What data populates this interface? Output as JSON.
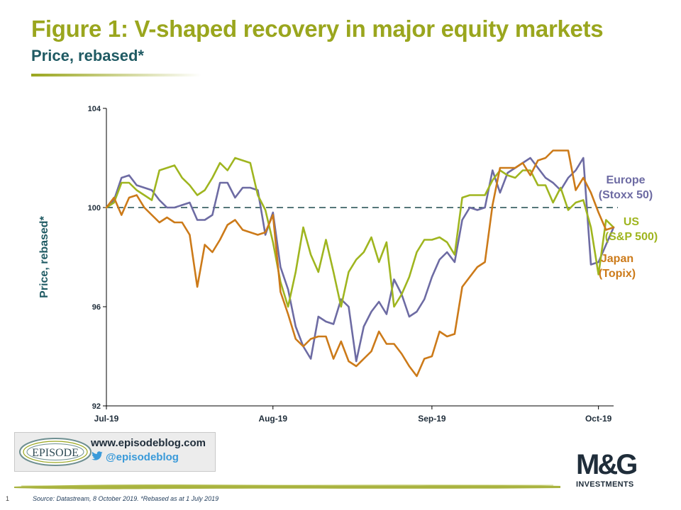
{
  "header": {
    "title": "Figure 1: V-shaped recovery in major equity markets",
    "subtitle": "Price, rebased*"
  },
  "chart_data": {
    "type": "line",
    "ylabel": "Price, rebased*",
    "ylim": [
      92,
      104
    ],
    "yticks": [
      92,
      96,
      100,
      104
    ],
    "x_ticks": [
      {
        "label": "Jul-19",
        "index": 0
      },
      {
        "label": "Aug-19",
        "index": 22
      },
      {
        "label": "Sep-19",
        "index": 43
      },
      {
        "label": "Oct-19",
        "index": 65
      }
    ],
    "reference_line": 100,
    "series": [
      {
        "name": "Europe (Stoxx 50)",
        "label_lines": [
          "Europe",
          "(Stoxx 50)"
        ],
        "color": "#6d6ba3",
        "values": [
          100,
          100.3,
          101.2,
          101.3,
          100.9,
          100.8,
          100.7,
          100.3,
          100.0,
          100.0,
          100.1,
          100.2,
          99.5,
          99.5,
          99.7,
          101.0,
          101.0,
          100.4,
          100.8,
          100.8,
          100.7,
          98.9,
          99.8,
          97.6,
          96.7,
          95.2,
          94.4,
          93.9,
          95.6,
          95.4,
          95.3,
          96.3,
          96.0,
          93.8,
          95.2,
          95.8,
          96.2,
          95.7,
          97.1,
          96.5,
          95.6,
          95.8,
          96.3,
          97.2,
          97.9,
          98.2,
          97.8,
          99.5,
          100.0,
          99.9,
          100.0,
          101.5,
          100.6,
          101.4,
          101.6,
          101.8,
          102.0,
          101.6,
          101.2,
          101.0,
          100.7,
          101.2,
          101.5,
          102.0,
          97.7,
          97.8,
          98.5,
          99.2
        ]
      },
      {
        "name": "US (S&P 500)",
        "label_lines": [
          "US",
          "(S&P 500)"
        ],
        "color": "#9fb51f",
        "values": [
          100,
          100.2,
          101.0,
          101.0,
          100.7,
          100.5,
          100.3,
          101.5,
          101.6,
          101.7,
          101.2,
          100.9,
          100.5,
          100.7,
          101.2,
          101.8,
          101.5,
          102.0,
          101.9,
          101.8,
          100.5,
          99.9,
          98.6,
          97.0,
          96.0,
          97.4,
          99.2,
          98.1,
          97.4,
          98.7,
          97.4,
          96.0,
          97.4,
          97.9,
          98.2,
          98.8,
          97.8,
          98.6,
          96.0,
          96.5,
          97.2,
          98.2,
          98.7,
          98.7,
          98.8,
          98.6,
          98.1,
          100.4,
          100.5,
          100.5,
          100.5,
          101.1,
          101.5,
          101.3,
          101.2,
          101.5,
          101.5,
          100.9,
          100.9,
          100.2,
          100.8,
          99.9,
          100.2,
          100.3,
          99.2,
          97.3,
          99.5,
          99.2
        ]
      },
      {
        "name": "Japan (Topix)",
        "label_lines": [
          "Japan",
          "(Topix)"
        ],
        "color": "#cc7a19",
        "values": [
          100,
          100.4,
          99.7,
          100.4,
          100.5,
          100.0,
          99.7,
          99.4,
          99.6,
          99.4,
          99.4,
          98.9,
          96.8,
          98.5,
          98.2,
          98.7,
          99.3,
          99.5,
          99.1,
          99.0,
          98.9,
          99.0,
          99.7,
          96.6,
          95.7,
          94.7,
          94.4,
          94.7,
          94.8,
          94.8,
          93.9,
          94.6,
          93.8,
          93.6,
          93.9,
          94.2,
          95.0,
          94.5,
          94.5,
          94.1,
          93.6,
          93.2,
          93.9,
          94.0,
          95.0,
          94.8,
          94.9,
          96.8,
          97.2,
          97.6,
          97.8,
          100.1,
          101.6,
          101.6,
          101.6,
          101.8,
          101.3,
          101.9,
          102.0,
          102.3,
          102.3,
          102.3,
          100.7,
          101.2,
          100.6,
          99.8,
          99.1,
          99.2
        ]
      }
    ]
  },
  "footer": {
    "url": "www.episodeblog.com",
    "twitter": "@episodeblog",
    "badge_text": "EPISODE",
    "brand": "M&G",
    "brand_sub": "INVESTMENTS",
    "page_number": "1",
    "source": "Source: Datastream, 8 October 2019. *Rebased as at 1 July 2019"
  }
}
